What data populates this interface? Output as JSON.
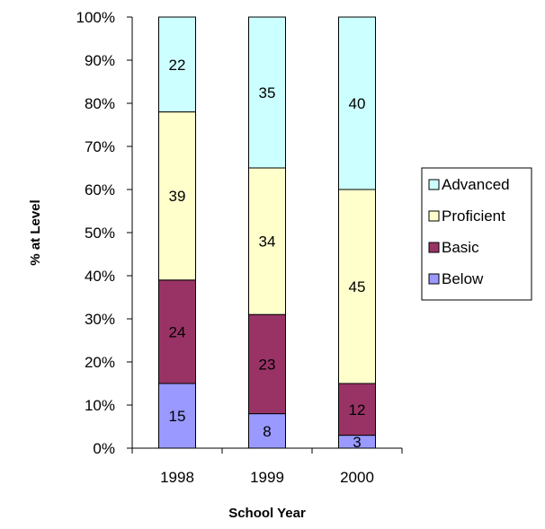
{
  "chart_data": {
    "type": "bar",
    "stacked": true,
    "categories": [
      "1998",
      "1999",
      "2000"
    ],
    "series": [
      {
        "name": "Below",
        "values": [
          15,
          8,
          3
        ],
        "color": "#9999ff"
      },
      {
        "name": "Basic",
        "values": [
          24,
          23,
          12
        ],
        "color": "#993366"
      },
      {
        "name": "Proficient",
        "values": [
          39,
          34,
          45
        ],
        "color": "#ffffcc"
      },
      {
        "name": "Advanced",
        "values": [
          22,
          35,
          40
        ],
        "color": "#ccffff"
      }
    ],
    "title": "",
    "xlabel": "School Year",
    "ylabel": "% at Level",
    "ylim": [
      0,
      100
    ],
    "ytick_labels": [
      "0%",
      "10%",
      "20%",
      "30%",
      "40%",
      "50%",
      "60%",
      "70%",
      "80%",
      "90%",
      "100%"
    ],
    "legend_position": "right",
    "legend_order": [
      "Advanced",
      "Proficient",
      "Basic",
      "Below"
    ],
    "grid": false
  }
}
